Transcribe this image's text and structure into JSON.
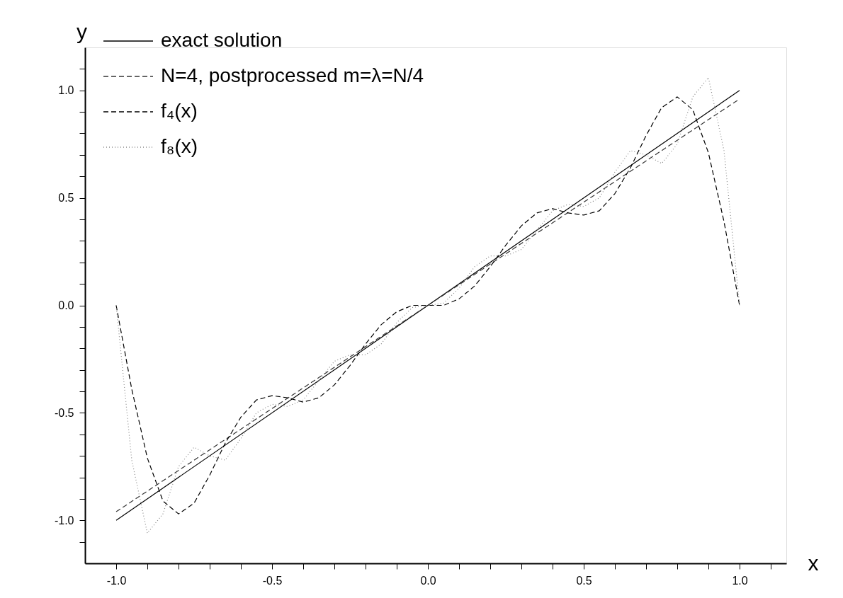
{
  "chart_data": {
    "type": "line",
    "xlabel": "x",
    "ylabel": "y",
    "legend": "top left",
    "grid": false,
    "marker": "none",
    "xlim": [
      -1.1,
      1.15
    ],
    "ylim": [
      -1.2,
      1.2
    ],
    "xticks": [
      {
        "value": -1,
        "label": "-1.0"
      },
      {
        "value": -0.9,
        "label": null
      },
      {
        "value": -0.8,
        "label": null
      },
      {
        "value": -0.7,
        "label": null
      },
      {
        "value": -0.6,
        "label": null
      },
      {
        "value": -0.5,
        "label": "-0.5"
      },
      {
        "value": -0.4,
        "label": null
      },
      {
        "value": -0.3,
        "label": null
      },
      {
        "value": -0.2,
        "label": null
      },
      {
        "value": -0.1,
        "label": null
      },
      {
        "value": 0,
        "label": "0.0"
      },
      {
        "value": 0.1,
        "label": null
      },
      {
        "value": 0.2,
        "label": null
      },
      {
        "value": 0.3,
        "label": null
      },
      {
        "value": 0.4,
        "label": null
      },
      {
        "value": 0.5,
        "label": "0.5"
      },
      {
        "value": 0.6,
        "label": null
      },
      {
        "value": 0.7,
        "label": null
      },
      {
        "value": 0.8,
        "label": null
      },
      {
        "value": 0.9,
        "label": null
      },
      {
        "value": 1,
        "label": "1.0"
      },
      {
        "value": 1.1,
        "label": null
      }
    ],
    "yticks": [
      {
        "value": -1.1,
        "label": null
      },
      {
        "value": -1,
        "label": "-1.0"
      },
      {
        "value": -0.9,
        "label": null
      },
      {
        "value": -0.8,
        "label": null
      },
      {
        "value": -0.7,
        "label": null
      },
      {
        "value": -0.6,
        "label": null
      },
      {
        "value": -0.5,
        "label": "-0.5"
      },
      {
        "value": -0.4,
        "label": null
      },
      {
        "value": -0.3,
        "label": null
      },
      {
        "value": -0.2,
        "label": null
      },
      {
        "value": -0.1,
        "label": null
      },
      {
        "value": 0,
        "label": "0.0"
      },
      {
        "value": 0.1,
        "label": null
      },
      {
        "value": 0.2,
        "label": null
      },
      {
        "value": 0.3,
        "label": null
      },
      {
        "value": 0.4,
        "label": null
      },
      {
        "value": 0.5,
        "label": "0.5"
      },
      {
        "value": 0.6,
        "label": null
      },
      {
        "value": 0.7,
        "label": null
      },
      {
        "value": 0.8,
        "label": null
      },
      {
        "value": 0.9,
        "label": null
      },
      {
        "value": 1,
        "label": "1.0"
      },
      {
        "value": 1.1,
        "label": null
      }
    ],
    "series": [
      {
        "name": "exact solution",
        "color": "#000000",
        "line_style": "solid",
        "x": [
          -1,
          1
        ],
        "values": [
          -1,
          1
        ]
      },
      {
        "name": "N=4, postprocessed m=λ=N/4",
        "color": "#333333",
        "line_style": "dashed",
        "x": [
          -1,
          1
        ],
        "values": [
          -0.96,
          0.96
        ]
      },
      {
        "name": "f₄(x)",
        "color": "#000000",
        "line_style": "dashed",
        "x": [
          -1,
          -0.95,
          -0.9,
          -0.85,
          -0.8,
          -0.75,
          -0.7,
          -0.65,
          -0.6,
          -0.55,
          -0.5,
          -0.45,
          -0.4,
          -0.35,
          -0.3,
          -0.25,
          -0.2,
          -0.15,
          -0.1,
          -0.05,
          0,
          0.05,
          0.1,
          0.15,
          0.2,
          0.25,
          0.3,
          0.35,
          0.4,
          0.45,
          0.5,
          0.55,
          0.6,
          0.65,
          0.7,
          0.75,
          0.8,
          0.85,
          0.9,
          0.95,
          1
        ],
        "values": [
          0,
          -0.39,
          -0.71,
          -0.91,
          -0.97,
          -0.92,
          -0.79,
          -0.64,
          -0.52,
          -0.44,
          -0.42,
          -0.43,
          -0.45,
          -0.43,
          -0.37,
          -0.28,
          -0.18,
          -0.09,
          -0.03,
          0,
          0,
          0,
          0.03,
          0.09,
          0.18,
          0.28,
          0.37,
          0.43,
          0.45,
          0.43,
          0.42,
          0.44,
          0.52,
          0.64,
          0.79,
          0.92,
          0.97,
          0.91,
          0.71,
          0.39,
          0
        ]
      },
      {
        "name": "f₈(x)",
        "color": "#888888",
        "line_style": "dotted",
        "x": [
          -1,
          -0.95,
          -0.9,
          -0.85,
          -0.8,
          -0.75,
          -0.7,
          -0.65,
          -0.6,
          -0.55,
          -0.5,
          -0.45,
          -0.4,
          -0.35,
          -0.3,
          -0.25,
          -0.2,
          -0.15,
          -0.1,
          -0.05,
          0,
          0.05,
          0.1,
          0.15,
          0.2,
          0.25,
          0.3,
          0.35,
          0.4,
          0.45,
          0.5,
          0.55,
          0.6,
          0.65,
          0.7,
          0.75,
          0.8,
          0.85,
          0.9,
          0.95,
          1
        ],
        "values": [
          0,
          -0.72,
          -1.06,
          -0.97,
          -0.75,
          -0.66,
          -0.7,
          -0.72,
          -0.62,
          -0.5,
          -0.46,
          -0.47,
          -0.44,
          -0.35,
          -0.26,
          -0.23,
          -0.23,
          -0.18,
          -0.08,
          -0.01,
          0,
          0.01,
          0.08,
          0.18,
          0.23,
          0.23,
          0.26,
          0.35,
          0.44,
          0.47,
          0.46,
          0.5,
          0.62,
          0.72,
          0.7,
          0.66,
          0.75,
          0.97,
          1.06,
          0.72,
          0
        ]
      }
    ]
  }
}
